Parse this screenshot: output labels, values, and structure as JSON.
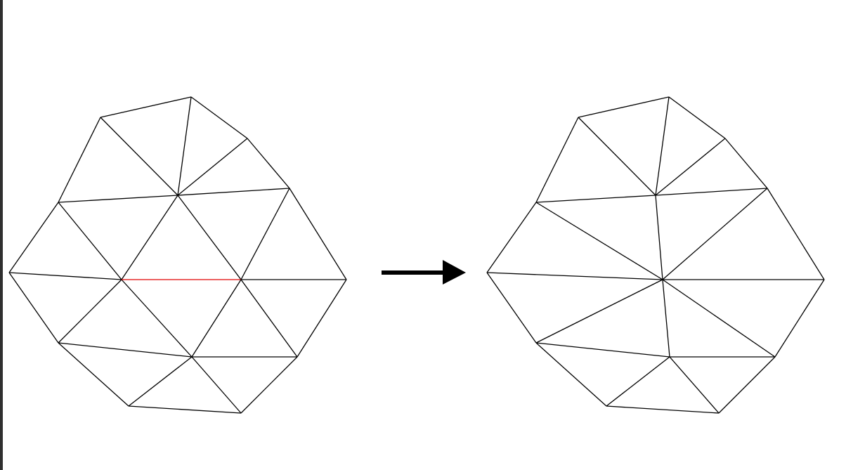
{
  "colors": {
    "background": "#ffffff",
    "edge": "#000000",
    "highlight_edge": "#e00000",
    "frame_border": "#2f2f2f",
    "arrow": "#000000"
  },
  "meshes": {
    "before": {
      "label": "",
      "highlighted_edge_index": 24
    },
    "after": {
      "label": ""
    }
  },
  "arrow": {
    "icon": "right-arrow-icon",
    "direction": "right"
  }
}
